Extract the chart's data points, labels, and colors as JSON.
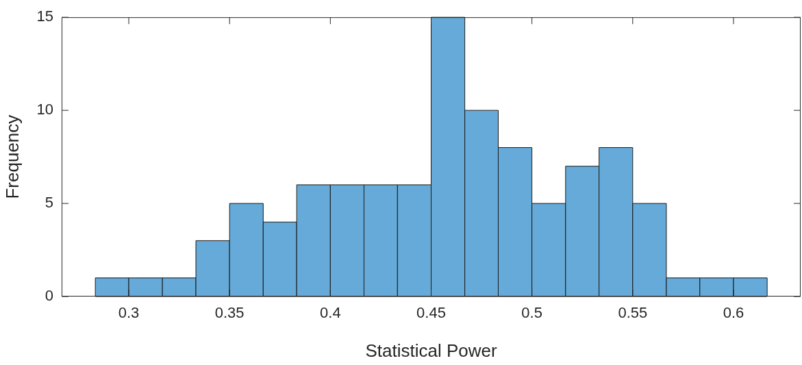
{
  "chart_data": {
    "type": "histogram",
    "xlabel": "Statistical Power",
    "ylabel": "Frequency",
    "bins": [
      0.2834,
      0.3,
      0.3167,
      0.3333,
      0.35,
      0.3667,
      0.3833,
      0.4,
      0.4167,
      0.4333,
      0.45,
      0.4667,
      0.4833,
      0.5,
      0.5167,
      0.5333,
      0.55,
      0.5667,
      0.5833,
      0.6,
      0.6167
    ],
    "values": [
      1,
      1,
      1,
      3,
      5,
      4,
      6,
      6,
      6,
      6,
      15,
      10,
      8,
      5,
      7,
      8,
      5,
      1,
      1,
      1
    ],
    "color": "#65aad8",
    "xlim": [
      0.2667,
      0.6333
    ],
    "xticks": [
      {
        "value": 0.3,
        "label": "0.3"
      },
      {
        "value": 0.35,
        "label": "0.35"
      },
      {
        "value": 0.4,
        "label": "0.4"
      },
      {
        "value": 0.45,
        "label": "0.45"
      },
      {
        "value": 0.5,
        "label": "0.5"
      },
      {
        "value": 0.55,
        "label": "0.55"
      },
      {
        "value": 0.6,
        "label": "0.6"
      }
    ],
    "ylim": [
      0,
      15
    ],
    "yticks": [
      0,
      5,
      10,
      15
    ],
    "grid": false,
    "legend": false
  }
}
